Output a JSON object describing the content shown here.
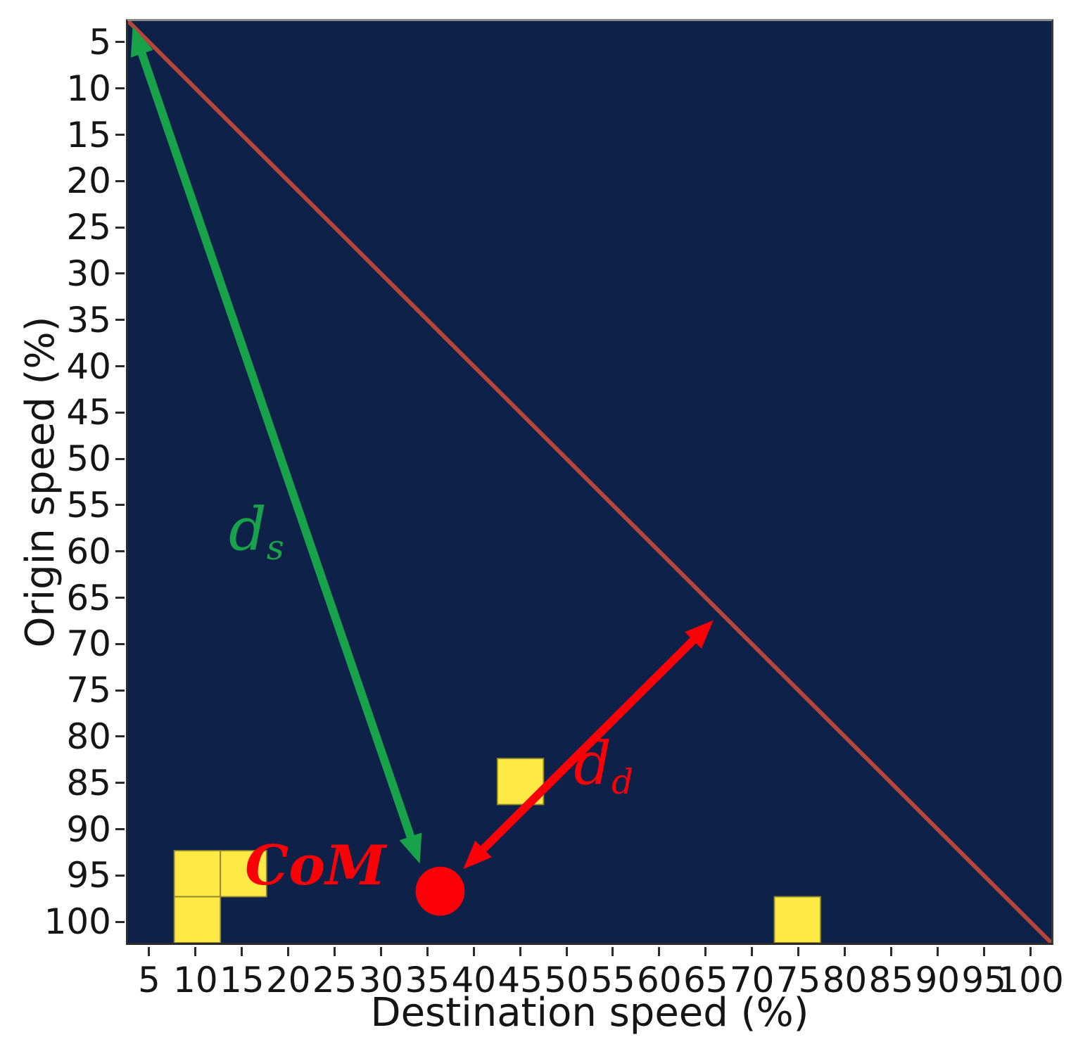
{
  "figure": {
    "xlabel": "Destination speed (%)",
    "ylabel": "Origin speed (%)"
  },
  "chart_data": {
    "type": "heatmap",
    "title": "",
    "xlabel": "Destination speed (%)",
    "ylabel": "Origin speed (%)",
    "x_ticks": [
      5,
      10,
      15,
      20,
      25,
      30,
      35,
      40,
      45,
      50,
      55,
      60,
      65,
      70,
      75,
      80,
      85,
      90,
      95,
      100
    ],
    "y_ticks": [
      5,
      10,
      15,
      20,
      25,
      30,
      35,
      40,
      45,
      50,
      55,
      60,
      65,
      70,
      75,
      80,
      85,
      90,
      95,
      100
    ],
    "x_range": [
      2.5,
      102.5
    ],
    "y_range": [
      2.5,
      102.5
    ],
    "y_axis_inverted": true,
    "grid": false,
    "legend": "none",
    "bin_size": 5,
    "colormap": {
      "name": "cividis-like",
      "low": "#0d2149",
      "high": "#ffe945",
      "cell_edge": "#8c862c"
    },
    "high_cells": [
      {
        "destination": 10,
        "origin": 95,
        "value": "high"
      },
      {
        "destination": 15,
        "origin": 95,
        "value": "high"
      },
      {
        "destination": 10,
        "origin": 100,
        "value": "high"
      },
      {
        "destination": 45,
        "origin": 85,
        "value": "high"
      },
      {
        "destination": 75,
        "origin": 100,
        "value": "high"
      }
    ],
    "diagonal_line": {
      "from": [
        2.5,
        2.5
      ],
      "to": [
        102.5,
        102.5
      ],
      "color": "#b4463c",
      "meaning": "origin = destination"
    },
    "com_point": {
      "x": 36.3,
      "y": 96.9,
      "radius_units": 2.66,
      "label": "CoM",
      "color": "#fb0006",
      "label_center": [
        22.8,
        94.2
      ]
    },
    "arrows": [
      {
        "name": "ds",
        "label_base": "d",
        "label_sub": "s",
        "color": "#18a34a",
        "from": [
          3.0,
          3.1
        ],
        "to": [
          34.1,
          93.9
        ],
        "double_headed": true,
        "label_center": [
          16.4,
          58.0
        ]
      },
      {
        "name": "dd",
        "label_base": "d",
        "label_sub": "d",
        "color": "#fb0006",
        "from": [
          38.8,
          94.5
        ],
        "to": [
          65.9,
          67.5
        ],
        "double_headed": true,
        "label_center": [
          54.0,
          83.4
        ]
      }
    ]
  },
  "style": {
    "plot_bg": "#0d2149",
    "cell_yellow": "#ffe945",
    "green": "#18a34a",
    "red": "#fb0006",
    "diag_red": "#b4463c",
    "tick_color": "#151515"
  }
}
